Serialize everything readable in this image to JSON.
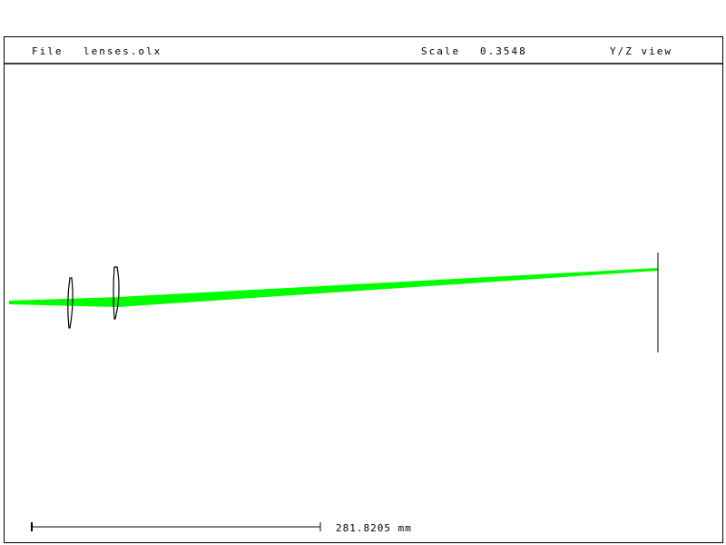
{
  "header": {
    "file_label": "File",
    "file_name": "lenses.olx",
    "scale_label": "Scale",
    "scale_value": "0.3548",
    "view_label": "Y/Z view"
  },
  "scale_bar": {
    "label": "281.8205 mm"
  },
  "colors": {
    "ray": "#00ff00",
    "lens": "#000000",
    "frame": "#000000"
  }
}
